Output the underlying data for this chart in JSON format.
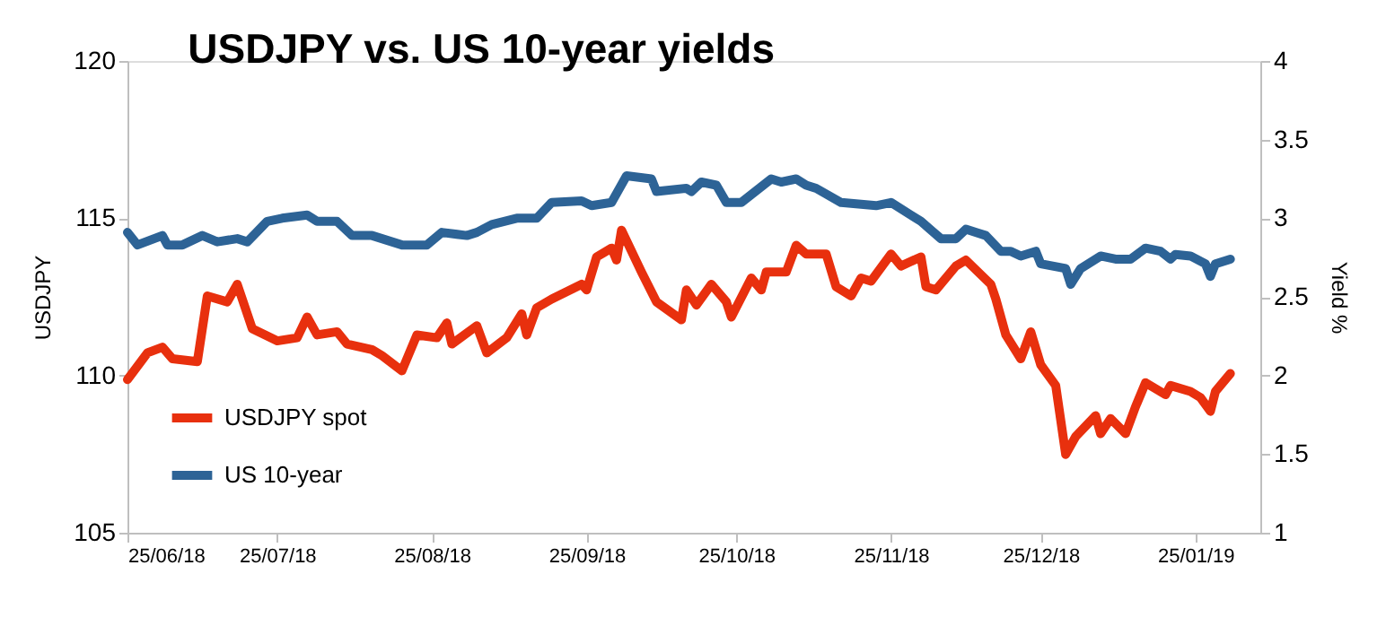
{
  "chart_data": {
    "type": "line",
    "title": "USDJPY vs. US 10-year yields",
    "ylabel": "USDJPY",
    "y2label": "Yield %",
    "xlim": [
      "2018-06-25",
      "2019-02-07"
    ],
    "xticks": [
      {
        "value": "2018-06-25",
        "label": "25/06/18"
      },
      {
        "value": "2018-07-25",
        "label": "25/07/18"
      },
      {
        "value": "2018-08-25",
        "label": "25/08/18"
      },
      {
        "value": "2018-09-25",
        "label": "25/09/18"
      },
      {
        "value": "2018-10-25",
        "label": "25/10/18"
      },
      {
        "value": "2018-11-25",
        "label": "25/11/18"
      },
      {
        "value": "2018-12-25",
        "label": "25/12/18"
      },
      {
        "value": "2019-01-25",
        "label": "25/01/19"
      }
    ],
    "ylim": [
      105,
      120
    ],
    "yticks": [
      105,
      110,
      115,
      120
    ],
    "y2lim": [
      1,
      4
    ],
    "y2ticks": [
      1,
      1.5,
      2,
      2.5,
      3,
      3.5,
      4
    ],
    "grid": false,
    "legend": "bottom left",
    "series": [
      {
        "name": "USDJPY spot",
        "color": "#e8300e",
        "x": [
          "2018-06-25",
          "2018-06-29",
          "2018-07-02",
          "2018-07-04",
          "2018-07-09",
          "2018-07-11",
          "2018-07-15",
          "2018-07-17",
          "2018-07-20",
          "2018-07-25",
          "2018-07-29",
          "2018-07-31",
          "2018-08-02",
          "2018-08-06",
          "2018-08-08",
          "2018-08-13",
          "2018-08-15",
          "2018-08-19",
          "2018-08-22",
          "2018-08-26",
          "2018-08-28",
          "2018-08-29",
          "2018-09-03",
          "2018-09-05",
          "2018-09-09",
          "2018-09-12",
          "2018-09-13",
          "2018-09-15",
          "2018-09-18",
          "2018-09-24",
          "2018-09-25",
          "2018-09-27",
          "2018-09-30",
          "2018-10-01",
          "2018-10-02",
          "2018-10-06",
          "2018-10-09",
          "2018-10-14",
          "2018-10-15",
          "2018-10-17",
          "2018-10-20",
          "2018-10-23",
          "2018-10-24",
          "2018-10-28",
          "2018-10-30",
          "2018-10-31",
          "2018-11-04",
          "2018-11-06",
          "2018-11-08",
          "2018-11-12",
          "2018-11-14",
          "2018-11-17",
          "2018-11-19",
          "2018-11-21",
          "2018-11-25",
          "2018-11-27",
          "2018-12-01",
          "2018-12-02",
          "2018-12-04",
          "2018-12-08",
          "2018-12-10",
          "2018-12-15",
          "2018-12-16",
          "2018-12-18",
          "2018-12-21",
          "2018-12-23",
          "2018-12-25",
          "2018-12-28",
          "2018-12-30",
          "2019-01-01",
          "2019-01-05",
          "2019-01-06",
          "2019-01-08",
          "2019-01-11",
          "2019-01-13",
          "2019-01-15",
          "2019-01-19",
          "2019-01-20",
          "2019-01-24",
          "2019-01-26",
          "2019-01-28",
          "2019-01-29",
          "2019-02-01"
        ],
        "values": [
          109.87,
          110.72,
          110.9,
          110.53,
          110.44,
          112.53,
          112.34,
          112.9,
          111.49,
          111.1,
          111.2,
          111.86,
          111.29,
          111.39,
          111.0,
          110.82,
          110.63,
          110.15,
          111.29,
          111.2,
          111.67,
          111.0,
          111.58,
          110.72,
          111.2,
          111.96,
          111.29,
          112.15,
          112.43,
          112.9,
          112.72,
          113.77,
          114.05,
          113.67,
          114.62,
          113.29,
          112.34,
          111.77,
          112.72,
          112.24,
          112.9,
          112.34,
          111.86,
          113.1,
          112.72,
          113.29,
          113.29,
          114.14,
          113.86,
          113.86,
          112.82,
          112.53,
          113.1,
          113.0,
          113.86,
          113.48,
          113.77,
          112.82,
          112.72,
          113.48,
          113.67,
          112.9,
          112.43,
          111.29,
          110.53,
          111.39,
          110.34,
          109.68,
          107.49,
          108.06,
          108.72,
          108.15,
          108.63,
          108.15,
          109.01,
          109.77,
          109.39,
          109.68,
          109.49,
          109.3,
          108.86,
          109.49,
          110.06
        ]
      },
      {
        "name": "US 10-year",
        "color": "#2d6396",
        "axis": "y2",
        "x": [
          "2018-06-25",
          "2018-06-27",
          "2018-07-02",
          "2018-07-03",
          "2018-07-06",
          "2018-07-10",
          "2018-07-13",
          "2018-07-17",
          "2018-07-19",
          "2018-07-23",
          "2018-07-26",
          "2018-07-31",
          "2018-08-02",
          "2018-08-06",
          "2018-08-09",
          "2018-08-13",
          "2018-08-15",
          "2018-08-19",
          "2018-08-24",
          "2018-08-27",
          "2018-09-01",
          "2018-09-03",
          "2018-09-06",
          "2018-09-11",
          "2018-09-15",
          "2018-09-18",
          "2018-09-24",
          "2018-09-26",
          "2018-09-30",
          "2018-10-03",
          "2018-10-08",
          "2018-10-09",
          "2018-10-15",
          "2018-10-16",
          "2018-10-18",
          "2018-10-21",
          "2018-10-23",
          "2018-10-26",
          "2018-10-28",
          "2018-11-01",
          "2018-11-03",
          "2018-11-06",
          "2018-11-08",
          "2018-11-10",
          "2018-11-15",
          "2018-11-22",
          "2018-11-25",
          "2018-12-01",
          "2018-12-05",
          "2018-12-08",
          "2018-12-10",
          "2018-12-14",
          "2018-12-17",
          "2018-12-19",
          "2018-12-21",
          "2018-12-24",
          "2018-12-25",
          "2018-12-30",
          "2018-12-31",
          "2019-01-02",
          "2019-01-06",
          "2019-01-09",
          "2019-01-12",
          "2019-01-15",
          "2019-01-18",
          "2019-01-20",
          "2019-01-21",
          "2019-01-24",
          "2019-01-27",
          "2019-01-28",
          "2019-01-29",
          "2019-02-01"
        ],
        "values": [
          2.91,
          2.83,
          2.89,
          2.83,
          2.83,
          2.89,
          2.85,
          2.87,
          2.85,
          2.98,
          3.0,
          3.02,
          2.98,
          2.98,
          2.89,
          2.89,
          2.87,
          2.83,
          2.83,
          2.91,
          2.89,
          2.91,
          2.96,
          3.0,
          3.0,
          3.1,
          3.11,
          3.08,
          3.1,
          3.27,
          3.25,
          3.17,
          3.19,
          3.17,
          3.23,
          3.21,
          3.1,
          3.1,
          3.15,
          3.25,
          3.23,
          3.25,
          3.21,
          3.19,
          3.1,
          3.08,
          3.1,
          2.98,
          2.87,
          2.87,
          2.93,
          2.89,
          2.79,
          2.79,
          2.76,
          2.79,
          2.71,
          2.68,
          2.58,
          2.68,
          2.76,
          2.74,
          2.74,
          2.81,
          2.79,
          2.74,
          2.77,
          2.76,
          2.71,
          2.63,
          2.71,
          2.74
        ]
      }
    ]
  }
}
